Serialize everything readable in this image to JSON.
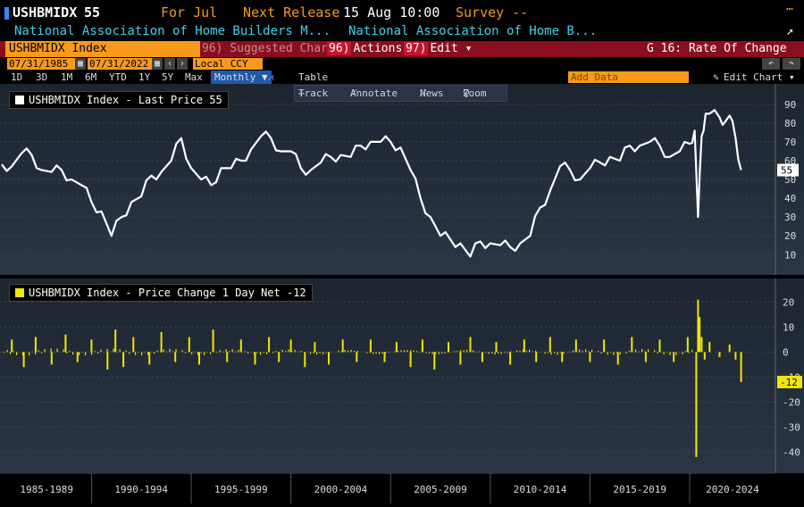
{
  "header": {
    "ticker": "USHBMIDX",
    "last": "55",
    "for_label": "For Jul",
    "next_release_label": "Next Release",
    "next_release_value": "15 Aug 10:00",
    "survey_label": "Survey --",
    "desc_1": "National Association of Home Builders M...",
    "desc_2": "National Association of Home B...",
    "icon_top": "…",
    "icon_export": "↗"
  },
  "menubar": {
    "security": "USHBMIDX Index",
    "suggested": "96) Suggested Charts",
    "actions_num": "96)",
    "actions": "Actions ▾",
    "edit_num": "97)",
    "edit": "Edit ▾",
    "chart_name": "G 16: Rate Of Change"
  },
  "range": {
    "start": "07/31/1985",
    "end": "07/31/2022",
    "currency": "Local CCY",
    "undo": "↶",
    "redo": "↷"
  },
  "periods": {
    "items": [
      "1D",
      "3D",
      "1M",
      "6M",
      "YTD",
      "1Y",
      "5Y",
      "Max"
    ],
    "frequency": "Monthly ▼",
    "table": "Table",
    "add_data": "Add Data",
    "edit_chart": "Edit Chart"
  },
  "toolbar": {
    "track": "Track",
    "annotate": "Annotate",
    "news": "News",
    "zoom": "Zoom"
  },
  "colors": {
    "series1": "#ffffff",
    "series2": "#f2e600",
    "accent": "#f59a1b",
    "menubar": "#8a0f1e"
  },
  "chart_data": [
    {
      "type": "line",
      "legend": "USHBMIDX Index - Last Price 55",
      "last_value_label": "55",
      "x_start": "1985-07",
      "x_end": "2022-07",
      "ylim": [
        3,
        98
      ],
      "yticks": [
        10,
        20,
        30,
        40,
        50,
        60,
        70,
        80,
        90
      ],
      "x": [
        1985.5,
        1986.0,
        1986.5,
        1987.0,
        1987.5,
        1988.0,
        1988.5,
        1989.0,
        1989.5,
        1990.0,
        1990.5,
        1991.0,
        1991.5,
        1992.0,
        1992.5,
        1993.0,
        1993.5,
        1994.0,
        1994.5,
        1995.0,
        1995.5,
        1996.0,
        1996.5,
        1997.0,
        1997.5,
        1998.0,
        1998.5,
        1999.0,
        1999.5,
        2000.0,
        2000.5,
        2001.0,
        2001.5,
        2002.0,
        2002.5,
        2003.0,
        2003.5,
        2004.0,
        2004.5,
        2005.0,
        2005.5,
        2006.0,
        2006.5,
        2007.0,
        2007.5,
        2008.0,
        2008.5,
        2009.0,
        2009.5,
        2010.0,
        2010.5,
        2011.0,
        2011.5,
        2012.0,
        2012.5,
        2013.0,
        2013.5,
        2014.0,
        2014.5,
        2015.0,
        2015.5,
        2016.0,
        2016.5,
        2017.0,
        2017.5,
        2018.0,
        2018.5,
        2019.0,
        2019.5,
        2020.0,
        2020.25,
        2020.42,
        2020.6,
        2020.8,
        2021.0,
        2021.5,
        2021.8,
        2022.0,
        2022.3,
        2022.58
      ],
      "values": [
        58,
        57,
        64,
        63,
        55,
        54,
        55,
        50,
        47,
        38,
        33,
        20,
        30,
        38,
        41,
        52,
        54,
        60,
        72,
        56,
        50,
        47,
        56,
        56,
        60,
        66,
        73,
        72,
        65,
        65,
        56,
        55,
        59,
        62,
        63,
        62,
        68,
        70,
        70,
        70,
        67,
        55,
        40,
        30,
        20,
        18,
        16,
        9,
        17,
        16,
        15,
        14,
        16,
        20,
        35,
        44,
        57,
        55,
        50,
        56,
        59,
        62,
        60,
        68,
        68,
        70,
        68,
        62,
        65,
        69,
        76,
        30,
        73,
        85,
        85,
        83,
        81,
        84,
        72,
        55
      ]
    },
    {
      "type": "bar",
      "legend": "USHBMIDX Index - Price Change 1 Day Net -12",
      "last_value_label": "-12",
      "ylim": [
        -47,
        28
      ],
      "yticks": [
        20,
        10,
        0,
        -10,
        -20,
        -30,
        -40
      ],
      "x": [
        1986.0,
        1986.6,
        1987.2,
        1988.0,
        1988.7,
        1989.3,
        1990.0,
        1990.8,
        1991.2,
        1991.6,
        1992.1,
        1992.9,
        1993.5,
        1994.2,
        1994.9,
        1995.4,
        1996.1,
        1996.8,
        1997.5,
        1998.2,
        1998.9,
        1999.4,
        2000.0,
        2000.7,
        2001.2,
        2001.9,
        2002.6,
        2003.3,
        2004.0,
        2004.7,
        2005.3,
        2006.0,
        2006.6,
        2007.2,
        2007.9,
        2008.5,
        2009.0,
        2009.6,
        2010.3,
        2011.0,
        2011.7,
        2012.3,
        2013.0,
        2013.6,
        2014.3,
        2015.0,
        2015.7,
        2016.4,
        2017.1,
        2017.8,
        2018.5,
        2019.2,
        2019.9,
        2020.33,
        2020.42,
        2020.5,
        2020.6,
        2020.75,
        2021.0,
        2021.5,
        2022.0,
        2022.3,
        2022.58
      ],
      "values": [
        5,
        -6,
        6,
        -5,
        7,
        -4,
        5,
        -7,
        9,
        -6,
        6,
        -5,
        8,
        -4,
        6,
        -5,
        9,
        -4,
        5,
        -5,
        6,
        -4,
        5,
        -6,
        4,
        -5,
        5,
        -4,
        5,
        -4,
        4,
        -6,
        5,
        -7,
        4,
        -5,
        6,
        -4,
        4,
        -5,
        5,
        -4,
        6,
        -4,
        5,
        -4,
        5,
        -5,
        6,
        -4,
        5,
        -4,
        6,
        -42,
        21,
        14,
        6,
        -3,
        4,
        -2,
        3,
        -3,
        -12
      ]
    }
  ],
  "xaxis": {
    "labels": [
      "1985-1989",
      "1990-1994",
      "1995-1999",
      "2000-2004",
      "2005-2009",
      "2010-2014",
      "2015-2019",
      "2020-2024"
    ]
  }
}
